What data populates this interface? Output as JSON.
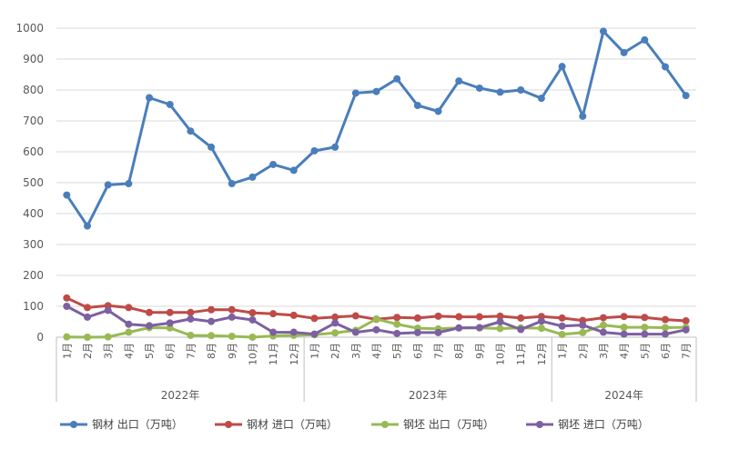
{
  "chart_data": {
    "type": "line",
    "title": "",
    "xlabel": "",
    "ylabel": "",
    "ylim": [
      0,
      1000
    ],
    "yticks": [
      0,
      100,
      200,
      300,
      400,
      500,
      600,
      700,
      800,
      900,
      1000
    ],
    "grid": true,
    "legend_position": "bottom",
    "categories": [
      "1月",
      "2月",
      "3月",
      "4月",
      "5月",
      "6月",
      "7月",
      "8月",
      "9月",
      "10月",
      "11月",
      "12月",
      "1月",
      "2月",
      "3月",
      "4月",
      "5月",
      "6月",
      "7月",
      "8月",
      "9月",
      "10月",
      "11月",
      "12月",
      "1月",
      "2月",
      "3月",
      "4月",
      "5月",
      "6月",
      "7月"
    ],
    "groups": [
      {
        "label": "2022年",
        "count": 12
      },
      {
        "label": "2023年",
        "count": 12
      },
      {
        "label": "2024年",
        "count": 7
      }
    ],
    "series": [
      {
        "name": "钢材 出口（万吨）",
        "color": "#4a7ebb",
        "values": [
          460,
          360,
          493,
          497,
          775,
          753,
          667,
          615,
          497,
          518,
          559,
          540,
          603,
          615,
          790,
          795,
          836,
          750,
          731,
          829,
          806,
          793,
          800,
          773,
          876,
          715,
          990,
          921,
          962,
          875,
          782
        ]
      },
      {
        "name": "钢材 进口（万吨）",
        "color": "#be4b48",
        "values": [
          127,
          96,
          102,
          96,
          80,
          80,
          80,
          89,
          89,
          79,
          76,
          71,
          61,
          65,
          69,
          58,
          64,
          62,
          68,
          66,
          66,
          68,
          62,
          67,
          62,
          54,
          63,
          67,
          64,
          57,
          53
        ]
      },
      {
        "name": "钢坯 出口（万吨）",
        "color": "#98b954",
        "values": [
          1,
          0,
          1,
          16,
          31,
          30,
          6,
          5,
          3,
          0,
          4,
          6,
          8,
          14,
          22,
          59,
          42,
          29,
          27,
          30,
          30,
          28,
          30,
          29,
          9,
          15,
          39,
          32,
          32,
          31,
          32
        ]
      },
      {
        "name": "钢坯 进口（万吨）",
        "color": "#7d60a0",
        "values": [
          100,
          65,
          87,
          42,
          37,
          46,
          59,
          51,
          65,
          56,
          16,
          16,
          10,
          46,
          16,
          24,
          12,
          15,
          15,
          30,
          31,
          50,
          25,
          52,
          36,
          39,
          16,
          10,
          10,
          10,
          24
        ]
      }
    ]
  }
}
